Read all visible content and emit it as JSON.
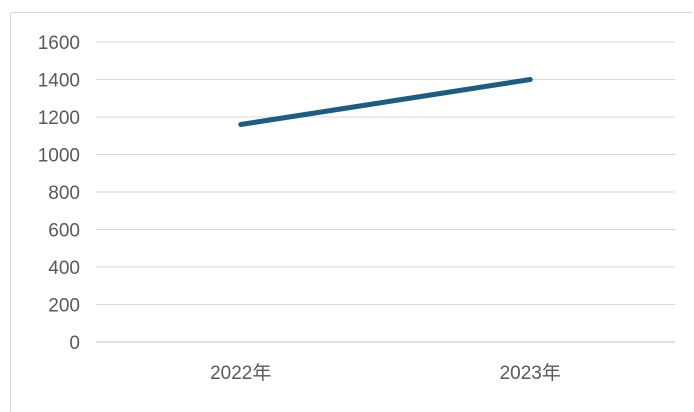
{
  "chart_data": {
    "type": "line",
    "title": "",
    "xlabel": "",
    "ylabel": "",
    "categories": [
      "2022年",
      "2023年"
    ],
    "series": [
      {
        "values": [
          1160,
          1400
        ],
        "color": "#1f5c7e"
      }
    ],
    "ylim": [
      0,
      1600
    ],
    "yticks": [
      0,
      200,
      400,
      600,
      800,
      1000,
      1200,
      1400,
      1600
    ],
    "grid": true,
    "legend": "none"
  }
}
